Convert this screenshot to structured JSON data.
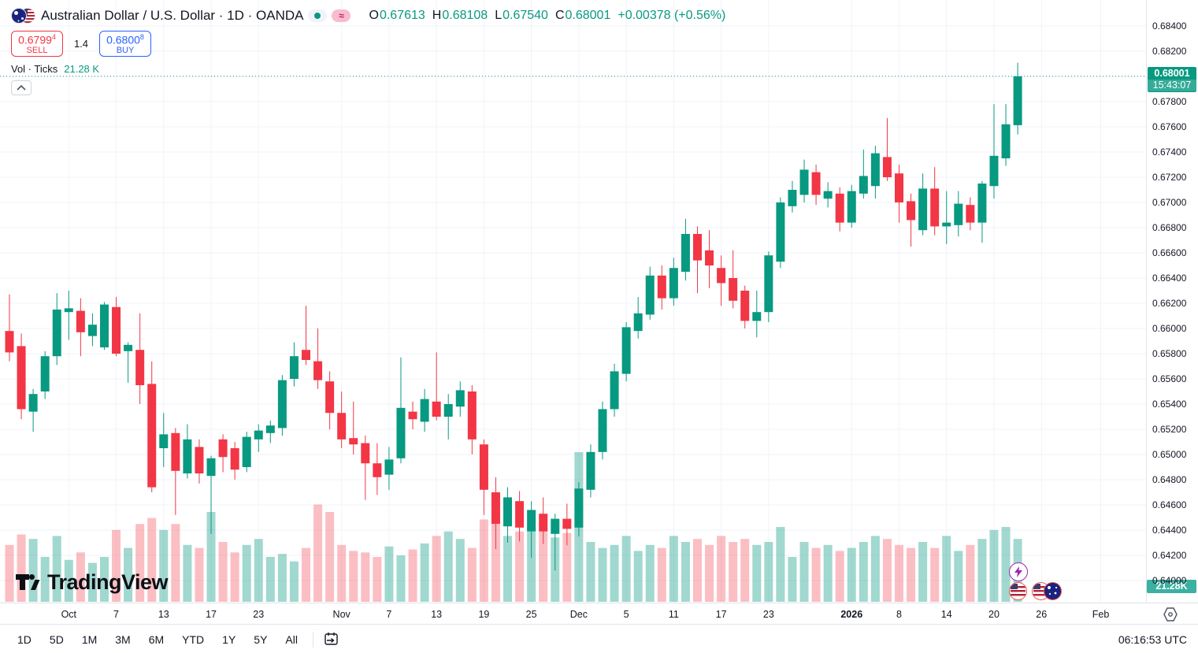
{
  "header": {
    "symbol_title": "Australian Dollar / U.S. Dollar · 1D · OANDA",
    "delay_badge": "≈",
    "ohlc": {
      "o_label": "O",
      "o": "0.67613",
      "h_label": "H",
      "h": "0.68108",
      "l_label": "L",
      "l": "0.67540",
      "c_label": "C",
      "c": "0.68001",
      "change": "+0.00378 (+0.56%)"
    }
  },
  "order_panel": {
    "sell_price": "0.6799",
    "sell_sup": "4",
    "sell_label": "SELL",
    "spread": "1.4",
    "buy_price": "0.6800",
    "buy_sup": "8",
    "buy_label": "BUY"
  },
  "volume_row": {
    "label": "Vol · Ticks",
    "value": "21.28 K"
  },
  "watermark": "TradingView",
  "price_scale": {
    "last_price": "0.68001",
    "countdown": "15:43:07",
    "volume_badge": "21.28K"
  },
  "toolbar": {
    "ranges": [
      "1D",
      "5D",
      "1M",
      "3M",
      "6M",
      "YTD",
      "1Y",
      "5Y",
      "All"
    ],
    "clock": "06:16:53 UTC"
  },
  "colors": {
    "up": "#089981",
    "down": "#f23645",
    "vol_up": "rgba(8,153,129,0.38)",
    "vol_down": "rgba(242,54,69,0.32)",
    "grid": "#f0f3fa",
    "axis_text": "#131722",
    "accent_blue": "#2962ff",
    "price_line": "#089981",
    "last_price_bg": "#089981",
    "vol_badge_bg": "#3cb0a1"
  },
  "chart_data": {
    "type": "candlestick",
    "title": "AUD/USD 1D OANDA candlestick chart with tick-volume pane",
    "symbol": "AUDUSD",
    "exchange": "OANDA",
    "interval": "1D",
    "legend_position": "top-left",
    "grid": true,
    "price_axis": {
      "min": 0.64,
      "max": 0.684,
      "step": 0.002,
      "skip_label": 0.68,
      "last": 0.68001
    },
    "columns": [
      "date",
      "open",
      "high",
      "low",
      "close",
      "vol_rel"
    ],
    "candles": [
      [
        "2025-09-24",
        0.6598,
        0.6627,
        0.6574,
        0.6581,
        0.38
      ],
      [
        "2025-09-25",
        0.6586,
        0.6596,
        0.6528,
        0.6536,
        0.45
      ],
      [
        "2025-09-26",
        0.6534,
        0.6552,
        0.6518,
        0.6548,
        0.42
      ],
      [
        "2025-09-29",
        0.655,
        0.6582,
        0.6544,
        0.6578,
        0.3
      ],
      [
        "2025-09-30",
        0.6578,
        0.6628,
        0.6571,
        0.6615,
        0.44
      ],
      [
        "2025-10-01",
        0.6613,
        0.663,
        0.6591,
        0.6616,
        0.28
      ],
      [
        "2025-10-02",
        0.6614,
        0.6624,
        0.6578,
        0.6597,
        0.33
      ],
      [
        "2025-10-03",
        0.6594,
        0.6612,
        0.6586,
        0.6603,
        0.26
      ],
      [
        "2025-10-06",
        0.6585,
        0.6621,
        0.6583,
        0.6619,
        0.3
      ],
      [
        "2025-10-07",
        0.6617,
        0.6625,
        0.6578,
        0.658,
        0.48
      ],
      [
        "2025-10-08",
        0.6582,
        0.6589,
        0.6557,
        0.6587,
        0.36
      ],
      [
        "2025-10-09",
        0.6583,
        0.6612,
        0.654,
        0.6555,
        0.52
      ],
      [
        "2025-10-10",
        0.6556,
        0.6574,
        0.647,
        0.6474,
        0.56
      ],
      [
        "2025-10-13",
        0.6505,
        0.6533,
        0.649,
        0.6516,
        0.48
      ],
      [
        "2025-10-14",
        0.6517,
        0.6521,
        0.6452,
        0.6487,
        0.52
      ],
      [
        "2025-10-15",
        0.6485,
        0.6524,
        0.6481,
        0.6512,
        0.38
      ],
      [
        "2025-10-16",
        0.6506,
        0.6512,
        0.6477,
        0.6485,
        0.36
      ],
      [
        "2025-10-17",
        0.6483,
        0.6499,
        0.6437,
        0.6497,
        0.6
      ],
      [
        "2025-10-20",
        0.6512,
        0.6516,
        0.6486,
        0.6498,
        0.4
      ],
      [
        "2025-10-21",
        0.6505,
        0.651,
        0.648,
        0.6488,
        0.33
      ],
      [
        "2025-10-22",
        0.649,
        0.6518,
        0.6486,
        0.6514,
        0.38
      ],
      [
        "2025-10-23",
        0.6512,
        0.6524,
        0.6502,
        0.6519,
        0.42
      ],
      [
        "2025-10-24",
        0.6517,
        0.6527,
        0.6509,
        0.6523,
        0.3
      ],
      [
        "2025-10-27",
        0.6521,
        0.6563,
        0.6515,
        0.6559,
        0.32
      ],
      [
        "2025-10-28",
        0.656,
        0.6589,
        0.6554,
        0.6578,
        0.27
      ],
      [
        "2025-10-29",
        0.6583,
        0.6618,
        0.6571,
        0.6575,
        0.36
      ],
      [
        "2025-10-30",
        0.6574,
        0.66,
        0.6552,
        0.6559,
        0.65
      ],
      [
        "2025-10-31",
        0.6558,
        0.6566,
        0.652,
        0.6533,
        0.6
      ],
      [
        "2025-11-03",
        0.6533,
        0.655,
        0.6505,
        0.6512,
        0.38
      ],
      [
        "2025-11-04",
        0.6513,
        0.6542,
        0.65,
        0.6508,
        0.34
      ],
      [
        "2025-11-05",
        0.6509,
        0.6515,
        0.6464,
        0.6493,
        0.33
      ],
      [
        "2025-11-06",
        0.6493,
        0.6509,
        0.6468,
        0.6482,
        0.3
      ],
      [
        "2025-11-07",
        0.6484,
        0.6506,
        0.6472,
        0.6496,
        0.37
      ],
      [
        "2025-11-10",
        0.6497,
        0.6577,
        0.6493,
        0.6537,
        0.31
      ],
      [
        "2025-11-11",
        0.6534,
        0.6542,
        0.652,
        0.6528,
        0.35
      ],
      [
        "2025-11-12",
        0.6526,
        0.6552,
        0.6518,
        0.6544,
        0.39
      ],
      [
        "2025-11-13",
        0.6542,
        0.6581,
        0.6527,
        0.653,
        0.44
      ],
      [
        "2025-11-14",
        0.653,
        0.6548,
        0.6512,
        0.654,
        0.47
      ],
      [
        "2025-11-17",
        0.6538,
        0.6558,
        0.653,
        0.6551,
        0.42
      ],
      [
        "2025-11-18",
        0.655,
        0.6555,
        0.65,
        0.6512,
        0.36
      ],
      [
        "2025-11-19",
        0.6508,
        0.6512,
        0.6452,
        0.6472,
        0.55
      ],
      [
        "2025-11-20",
        0.647,
        0.6482,
        0.6425,
        0.6445,
        0.6
      ],
      [
        "2025-11-21",
        0.6443,
        0.6474,
        0.643,
        0.6466,
        0.44
      ],
      [
        "2025-11-24",
        0.6463,
        0.6471,
        0.6431,
        0.6442,
        0.47
      ],
      [
        "2025-11-25",
        0.6439,
        0.6463,
        0.6418,
        0.6456,
        0.5
      ],
      [
        "2025-11-26",
        0.6453,
        0.6466,
        0.6429,
        0.6439,
        0.48
      ],
      [
        "2025-11-27",
        0.6437,
        0.6453,
        0.6408,
        0.6449,
        0.43
      ],
      [
        "2025-11-28",
        0.6449,
        0.6461,
        0.6428,
        0.6441,
        0.46
      ],
      [
        "2025-12-01",
        0.6442,
        0.6478,
        0.6435,
        0.6473,
        1.0
      ],
      [
        "2025-12-02",
        0.6472,
        0.6508,
        0.6466,
        0.6502,
        0.4
      ],
      [
        "2025-12-03",
        0.6502,
        0.6542,
        0.6496,
        0.6536,
        0.36
      ],
      [
        "2025-12-04",
        0.6536,
        0.6572,
        0.653,
        0.6566,
        0.38
      ],
      [
        "2025-12-05",
        0.6564,
        0.6605,
        0.6558,
        0.6601,
        0.44
      ],
      [
        "2025-12-08",
        0.6598,
        0.6625,
        0.6592,
        0.6612,
        0.34
      ],
      [
        "2025-12-09",
        0.6611,
        0.6649,
        0.6607,
        0.6642,
        0.38
      ],
      [
        "2025-12-10",
        0.6642,
        0.665,
        0.6615,
        0.6624,
        0.36
      ],
      [
        "2025-12-11",
        0.6624,
        0.6656,
        0.6618,
        0.6648,
        0.44
      ],
      [
        "2025-12-12",
        0.6645,
        0.6687,
        0.6638,
        0.6675,
        0.4
      ],
      [
        "2025-12-15",
        0.6675,
        0.6681,
        0.6628,
        0.6654,
        0.42
      ],
      [
        "2025-12-16",
        0.6662,
        0.6678,
        0.6632,
        0.665,
        0.38
      ],
      [
        "2025-12-17",
        0.6648,
        0.6658,
        0.6618,
        0.6636,
        0.44
      ],
      [
        "2025-12-18",
        0.664,
        0.6662,
        0.6616,
        0.6622,
        0.4
      ],
      [
        "2025-12-19",
        0.663,
        0.6634,
        0.66,
        0.6606,
        0.42
      ],
      [
        "2025-12-22",
        0.6606,
        0.663,
        0.6593,
        0.6613,
        0.38
      ],
      [
        "2025-12-23",
        0.6613,
        0.6661,
        0.6605,
        0.6658,
        0.4
      ],
      [
        "2025-12-24",
        0.6653,
        0.6704,
        0.6648,
        0.67,
        0.5
      ],
      [
        "2025-12-25",
        0.6697,
        0.6717,
        0.6692,
        0.671,
        0.3
      ],
      [
        "2025-12-26",
        0.6706,
        0.6734,
        0.67,
        0.6726,
        0.4
      ],
      [
        "2025-12-29",
        0.6724,
        0.673,
        0.6698,
        0.6706,
        0.36
      ],
      [
        "2025-12-30",
        0.6703,
        0.6716,
        0.6696,
        0.6709,
        0.38
      ],
      [
        "2025-12-31",
        0.6707,
        0.6712,
        0.6677,
        0.6684,
        0.34
      ],
      [
        "2026-01-02",
        0.6684,
        0.6714,
        0.668,
        0.6709,
        0.36
      ],
      [
        "2026-01-05",
        0.6707,
        0.6742,
        0.6703,
        0.6721,
        0.4
      ],
      [
        "2026-01-06",
        0.6713,
        0.6745,
        0.6703,
        0.6739,
        0.44
      ],
      [
        "2026-01-07",
        0.6736,
        0.6767,
        0.6717,
        0.672,
        0.42
      ],
      [
        "2026-01-08",
        0.6723,
        0.673,
        0.6684,
        0.67,
        0.38
      ],
      [
        "2026-01-09",
        0.6701,
        0.6707,
        0.6665,
        0.6686,
        0.36
      ],
      [
        "2026-01-12",
        0.6678,
        0.6723,
        0.6674,
        0.6711,
        0.4
      ],
      [
        "2026-01-13",
        0.6711,
        0.6728,
        0.6674,
        0.6681,
        0.36
      ],
      [
        "2026-01-14",
        0.6681,
        0.6709,
        0.6667,
        0.6684,
        0.44
      ],
      [
        "2026-01-15",
        0.6682,
        0.6709,
        0.6673,
        0.6699,
        0.34
      ],
      [
        "2026-01-16",
        0.6698,
        0.6704,
        0.6678,
        0.6684,
        0.38
      ],
      [
        "2026-01-19",
        0.6684,
        0.6717,
        0.6668,
        0.6715,
        0.42
      ],
      [
        "2026-01-20",
        0.6713,
        0.6778,
        0.6703,
        0.6737,
        0.48
      ],
      [
        "2026-01-21",
        0.6735,
        0.6778,
        0.6729,
        0.6762,
        0.5
      ],
      [
        "2026-01-22",
        0.67613,
        0.68108,
        0.6754,
        0.68001,
        0.42
      ]
    ],
    "time_ticks": [
      {
        "i": 5,
        "label": "Oct"
      },
      {
        "i": 9,
        "label": "7"
      },
      {
        "i": 13,
        "label": "13"
      },
      {
        "i": 17,
        "label": "17"
      },
      {
        "i": 21,
        "label": "23"
      },
      {
        "i": 28,
        "label": "Nov"
      },
      {
        "i": 32,
        "label": "7"
      },
      {
        "i": 36,
        "label": "13"
      },
      {
        "i": 40,
        "label": "19"
      },
      {
        "i": 44,
        "label": "25"
      },
      {
        "i": 48,
        "label": "Dec"
      },
      {
        "i": 52,
        "label": "5"
      },
      {
        "i": 56,
        "label": "11"
      },
      {
        "i": 60,
        "label": "17"
      },
      {
        "i": 64,
        "label": "23"
      },
      {
        "i": 71,
        "label": "2026",
        "bold": true
      },
      {
        "i": 75,
        "label": "8"
      },
      {
        "i": 79,
        "label": "14"
      },
      {
        "i": 83,
        "label": "20"
      },
      {
        "i": 87,
        "label": "26"
      },
      {
        "i": 92,
        "label": "Feb"
      }
    ]
  }
}
